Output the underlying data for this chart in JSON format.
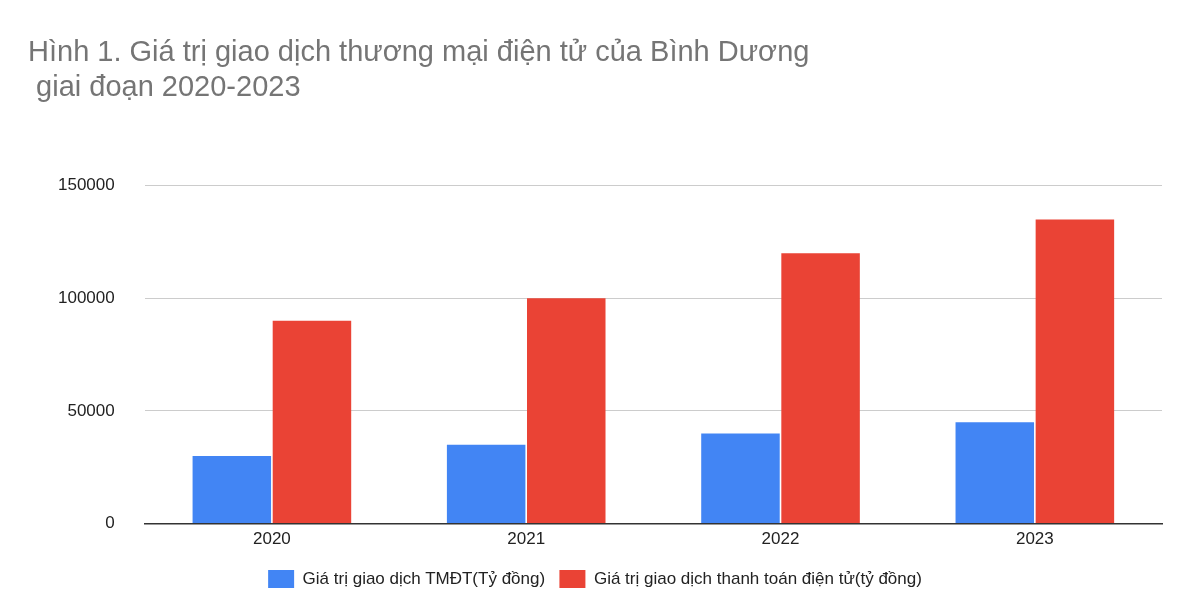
{
  "chart_data": {
    "type": "bar",
    "title": "Hình 1. Giá trị giao dịch thương mại điện tử của Bình Dương\n giai đoạn 2020-2023",
    "categories": [
      "2020",
      "2021",
      "2022",
      "2023"
    ],
    "series": [
      {
        "name": "Giá trị giao dịch TMĐT(Tỷ đồng)",
        "color": "#4285f4",
        "values": [
          30000,
          35000,
          40000,
          45000
        ]
      },
      {
        "name": "Giá trị giao dịch thanh toán điện tử(tỷ đồng)",
        "color": "#ea4335",
        "values": [
          90000,
          100000,
          120000,
          135000
        ]
      }
    ],
    "ylim": [
      0,
      150000
    ],
    "yticks": [
      0,
      50000,
      100000,
      150000
    ],
    "grid": "y",
    "legend": "bottom"
  }
}
